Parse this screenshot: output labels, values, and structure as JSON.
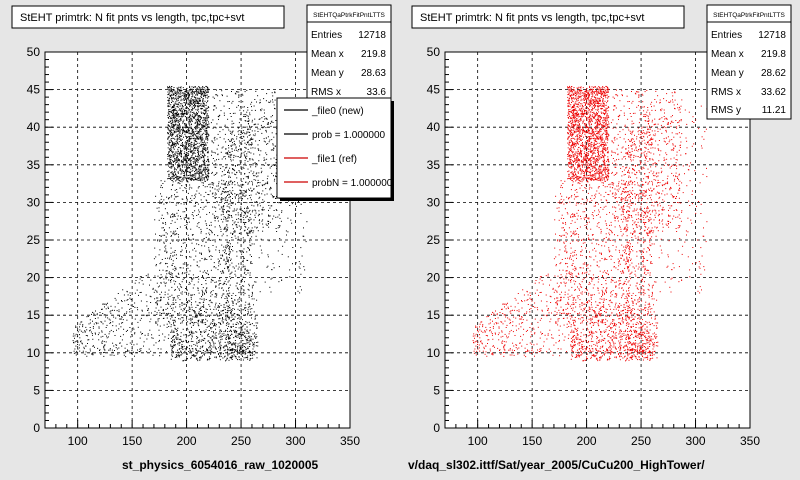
{
  "footer": {
    "left_label": "st_physics_6054016_raw_1020005",
    "right_label": "v/daq_sl302.ittf/Sat/year_2005/CuCu200_HighTower/"
  },
  "chart_data": [
    {
      "type": "scatter",
      "title": "StEHT primtrk: N fit pnts vs length, tpc,tpc+svt",
      "point_color": "#000000",
      "xlim": [
        70,
        350
      ],
      "ylim": [
        0,
        50
      ],
      "xticks": [
        100,
        150,
        200,
        250,
        300,
        350
      ],
      "yticks": [
        0,
        5,
        10,
        15,
        20,
        25,
        30,
        35,
        40,
        45,
        50
      ],
      "grid": true,
      "stats": {
        "name": "StEHTQaPtrkFitPntLTTS",
        "entries": [
          {
            "label": "Entries",
            "value": "12718"
          },
          {
            "label": "Mean x",
            "value": "219.8"
          },
          {
            "label": "Mean y",
            "value": "28.63"
          },
          {
            "label": "RMS x",
            "value": "33.6"
          }
        ]
      },
      "legend": {
        "placement": "top-right",
        "entries": [
          {
            "label": "_file0 (new)",
            "color": "#000000"
          },
          {
            "label": "prob = 1.000000",
            "color": "#000000"
          },
          {
            "label": "_file1 (ref)",
            "color": "#cc0000"
          },
          {
            "label": "probN = 1.000000",
            "color": "#cc0000"
          }
        ]
      }
    },
    {
      "type": "scatter",
      "title": "StEHT primtrk: N fit pnts vs length, tpc,tpc+svt",
      "point_color": "#ee0000",
      "xlim": [
        70,
        350
      ],
      "ylim": [
        0,
        50
      ],
      "xticks": [
        100,
        150,
        200,
        250,
        300,
        350
      ],
      "yticks": [
        0,
        5,
        10,
        15,
        20,
        25,
        30,
        35,
        40,
        45,
        50
      ],
      "grid": true,
      "stats": {
        "name": "StEHTQaPtrkFitPntLTTS",
        "entries": [
          {
            "label": "Entries",
            "value": "12718"
          },
          {
            "label": "Mean x",
            "value": "219.8"
          },
          {
            "label": "Mean y",
            "value": "28.62"
          },
          {
            "label": "RMS x",
            "value": "33.62"
          },
          {
            "label": "RMS y",
            "value": "11.21"
          }
        ]
      }
    }
  ]
}
